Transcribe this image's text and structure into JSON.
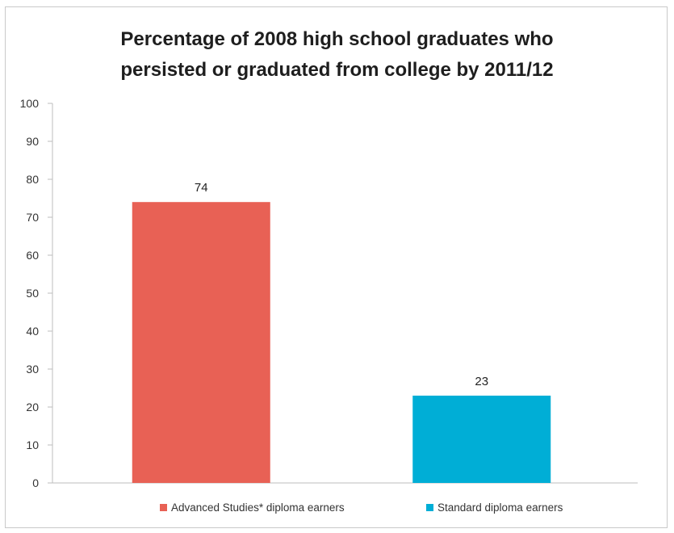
{
  "chart_data": {
    "type": "bar",
    "title_lines": [
      "Percentage of 2008 high school graduates who",
      "persisted or graduated from college by 2011/12"
    ],
    "categories": [
      "Advanced Studies* diploma earners",
      "Standard diploma earners"
    ],
    "values": [
      74,
      23
    ],
    "data_labels": [
      "74",
      "23"
    ],
    "colors": [
      "#e86155",
      "#00aed6"
    ],
    "ylim": [
      0,
      100
    ],
    "yticks": [
      "0",
      "10",
      "20",
      "30",
      "40",
      "50",
      "60",
      "70",
      "80",
      "90",
      "100"
    ],
    "grid": false,
    "legend": {
      "placement": "bottom",
      "entries": [
        "Advanced Studies* diploma earners",
        "Standard diploma earners"
      ]
    }
  }
}
